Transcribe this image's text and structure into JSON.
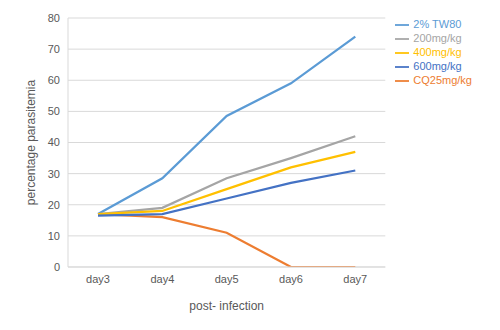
{
  "chart_data": {
    "type": "line",
    "x_label": "post- infection",
    "y_label": "percentage parasitemia",
    "categories": [
      "day3",
      "day4",
      "day5",
      "day6",
      "day7"
    ],
    "series": [
      {
        "name": "2% TW80",
        "color": "#5b9bd5",
        "values": [
          17,
          28.5,
          48.5,
          59,
          74
        ]
      },
      {
        "name": "CQ25mg/kg",
        "color": "#ed7d31",
        "values": [
          17,
          16,
          11,
          0,
          0
        ]
      },
      {
        "name": "200mg/kg",
        "color": "#a5a5a5",
        "values": [
          17,
          19,
          28.5,
          35,
          42
        ]
      },
      {
        "name": "400mg/kg",
        "color": "#ffc000",
        "values": [
          17,
          18,
          25,
          32,
          37
        ]
      },
      {
        "name": "600mg/kg",
        "color": "#4472c4",
        "values": [
          16.5,
          17,
          22,
          27,
          31
        ]
      }
    ],
    "ylim": [
      0,
      80
    ],
    "yticks": [
      0,
      10,
      20,
      30,
      40,
      50,
      60,
      70,
      80
    ],
    "grid": true,
    "legend": "right"
  }
}
